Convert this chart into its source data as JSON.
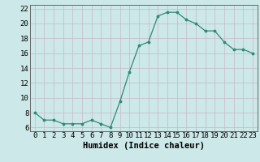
{
  "x": [
    0,
    1,
    2,
    3,
    4,
    5,
    6,
    7,
    8,
    9,
    10,
    11,
    12,
    13,
    14,
    15,
    16,
    17,
    18,
    19,
    20,
    21,
    22,
    23
  ],
  "y": [
    8.0,
    7.0,
    7.0,
    6.5,
    6.5,
    6.5,
    7.0,
    6.5,
    6.0,
    9.5,
    13.5,
    17.0,
    17.5,
    21.0,
    21.5,
    21.5,
    20.5,
    20.0,
    19.0,
    19.0,
    17.5,
    16.5,
    16.5,
    16.0
  ],
  "line_color": "#2e8b74",
  "marker_color": "#2e8b74",
  "bg_color": "#cce8e8",
  "grid_color": "#c8b8c8",
  "xlabel": "Humidex (Indice chaleur)",
  "ylim": [
    5.5,
    22.5
  ],
  "xlim": [
    -0.5,
    23.5
  ],
  "yticks": [
    6,
    8,
    10,
    12,
    14,
    16,
    18,
    20,
    22
  ],
  "xtick_labels": [
    "0",
    "1",
    "2",
    "3",
    "4",
    "5",
    "6",
    "7",
    "8",
    "9",
    "10",
    "11",
    "12",
    "13",
    "14",
    "15",
    "16",
    "17",
    "18",
    "19",
    "20",
    "21",
    "22",
    "23"
  ],
  "xlabel_fontsize": 7.5,
  "tick_fontsize": 6.5
}
